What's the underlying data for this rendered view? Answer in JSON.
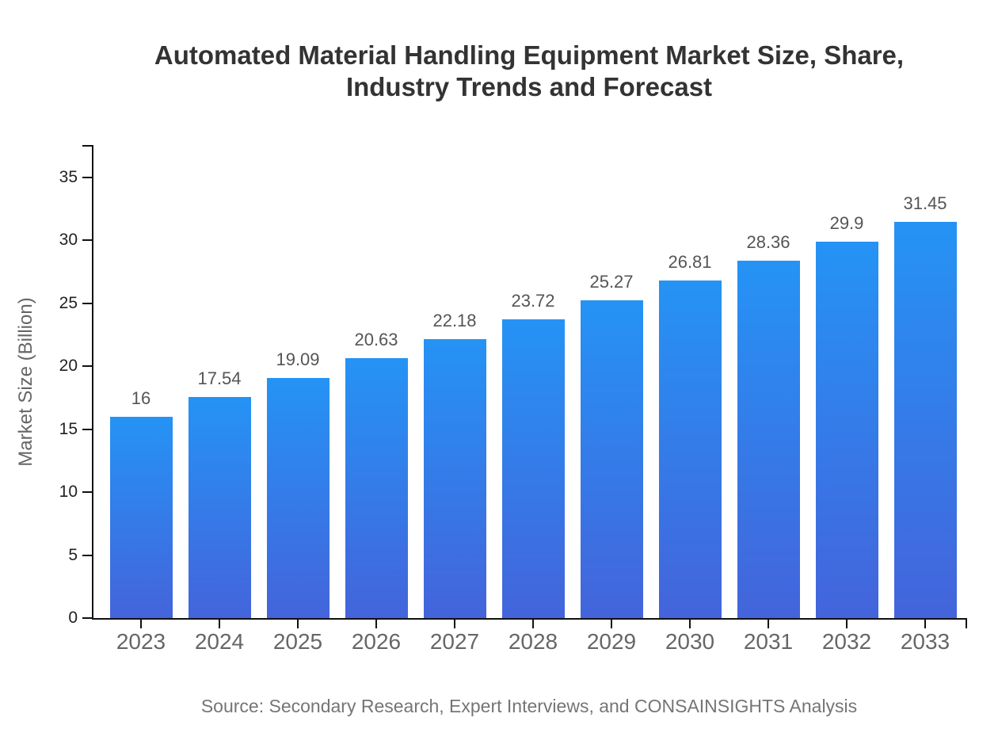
{
  "title": {
    "line1": "Automated Material Handling Equipment Market Size, Share,",
    "line2": "Industry Trends and Forecast"
  },
  "chart_data": {
    "type": "bar",
    "title": "Automated Material Handling Equipment Market Size, Share, Industry Trends and Forecast",
    "categories": [
      "2023",
      "2024",
      "2025",
      "2026",
      "2027",
      "2028",
      "2029",
      "2030",
      "2031",
      "2032",
      "2033"
    ],
    "values": [
      16,
      17.54,
      19.09,
      20.63,
      22.18,
      23.72,
      25.27,
      26.81,
      28.36,
      29.9,
      31.45
    ],
    "value_labels": [
      "16",
      "17.54",
      "19.09",
      "20.63",
      "22.18",
      "23.72",
      "25.27",
      "26.81",
      "28.36",
      "29.9",
      "31.45"
    ],
    "xlabel": "",
    "ylabel": "Market Size (Billion)",
    "ylim": [
      0,
      35
    ],
    "yticks": [
      0,
      5,
      10,
      15,
      20,
      25,
      30,
      35
    ],
    "grid": false,
    "legend": false,
    "colors": {
      "bar_gradient_top": "#2593f5",
      "bar_gradient_bottom": "#4464db",
      "title_text": "#333333",
      "axis_line": "#111111",
      "y_tick_label": "#222222",
      "x_tick_label": "#666666",
      "value_label": "#555555",
      "source_text": "#757575"
    }
  },
  "source": "Source: Secondary Research, Expert Interviews, and CONSAINSIGHTS Analysis"
}
